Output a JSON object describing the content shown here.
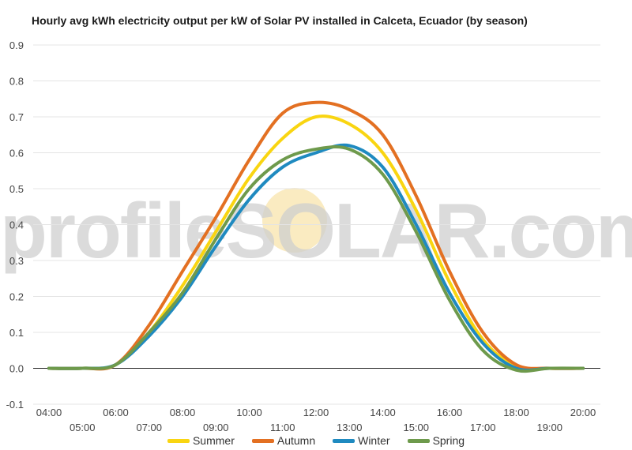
{
  "chart_data": {
    "type": "line",
    "title": "Hourly avg kWh electricity output per kW of Solar PV installed in Calceta, Ecuador (by season)",
    "xlabel": "",
    "ylabel": "",
    "ylim": [
      -0.1,
      0.9
    ],
    "yticks": [
      "-0.1",
      "0.0",
      "0.1",
      "0.2",
      "0.3",
      "0.4",
      "0.5",
      "0.6",
      "0.7",
      "0.8",
      "0.9"
    ],
    "x": [
      "04:00",
      "05:00",
      "06:00",
      "07:00",
      "08:00",
      "09:00",
      "10:00",
      "11:00",
      "12:00",
      "13:00",
      "14:00",
      "15:00",
      "16:00",
      "17:00",
      "18:00",
      "19:00",
      "20:00"
    ],
    "grid": true,
    "legend_position": "bottom",
    "series": [
      {
        "name": "Summer",
        "color": "#f9d511",
        "values": [
          0,
          0,
          0.01,
          0.1,
          0.23,
          0.38,
          0.53,
          0.64,
          0.7,
          0.68,
          0.6,
          0.44,
          0.24,
          0.08,
          0.005,
          0,
          0
        ]
      },
      {
        "name": "Autumn",
        "color": "#e37022",
        "values": [
          0,
          0,
          0.01,
          0.12,
          0.27,
          0.42,
          0.58,
          0.71,
          0.74,
          0.72,
          0.65,
          0.48,
          0.27,
          0.1,
          0.01,
          0,
          0
        ]
      },
      {
        "name": "Winter",
        "color": "#1f8ac0",
        "values": [
          0,
          0,
          0.01,
          0.09,
          0.2,
          0.34,
          0.47,
          0.56,
          0.6,
          0.62,
          0.56,
          0.4,
          0.21,
          0.07,
          0.0,
          0,
          0
        ]
      },
      {
        "name": "Spring",
        "color": "#6e9a4c",
        "values": [
          0,
          0,
          0.01,
          0.1,
          0.21,
          0.36,
          0.5,
          0.58,
          0.61,
          0.61,
          0.54,
          0.38,
          0.19,
          0.05,
          -0.005,
          0,
          0
        ]
      }
    ]
  },
  "watermark": "profileSOLAR.com"
}
